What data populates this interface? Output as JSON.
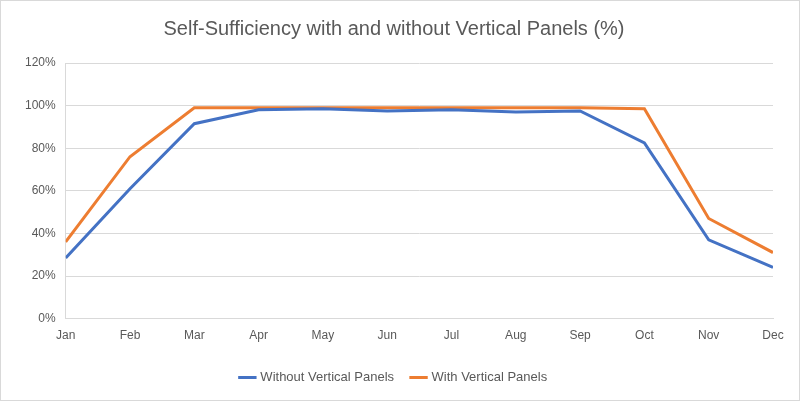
{
  "chart_data": {
    "type": "line",
    "title": "Self-Sufficiency with and without Vertical Panels (%)",
    "categories": [
      "Jan",
      "Feb",
      "Mar",
      "Apr",
      "May",
      "Jun",
      "Jul",
      "Aug",
      "Sep",
      "Oct",
      "Nov",
      "Dec"
    ],
    "series": [
      {
        "name": "Without Vertical Panels",
        "color": "#4472c4",
        "values": [
          28.5,
          61,
          91.5,
          98,
          98.5,
          97.5,
          98,
          97,
          97.5,
          82.5,
          37,
          24
        ]
      },
      {
        "name": "With Vertical Panels",
        "color": "#ed7d31",
        "values": [
          36,
          76,
          99,
          99,
          99,
          99,
          99,
          99,
          99,
          98.5,
          47,
          31
        ]
      }
    ],
    "ylim": [
      0,
      120
    ],
    "yticks": [
      {
        "value": 0,
        "label": "0%"
      },
      {
        "value": 20,
        "label": "20%"
      },
      {
        "value": 40,
        "label": "40%"
      },
      {
        "value": 60,
        "label": "60%"
      },
      {
        "value": 80,
        "label": "80%"
      },
      {
        "value": 100,
        "label": "100%"
      },
      {
        "value": 120,
        "label": "120%"
      }
    ],
    "grid": true,
    "legend": "bottom",
    "marker": "none",
    "line_style": "solid"
  }
}
